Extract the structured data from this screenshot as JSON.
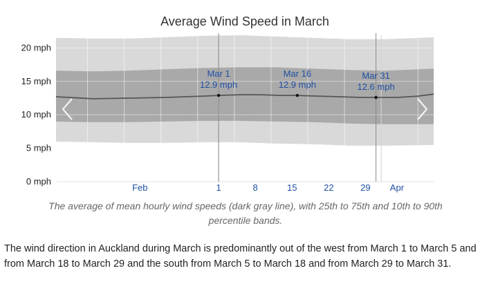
{
  "chart_data": {
    "type": "area",
    "title": "Average Wind Speed in March",
    "xlabel": "",
    "ylabel": "",
    "ylim": [
      0,
      22
    ],
    "y_ticks": [
      {
        "value": 0,
        "label": "0 mph"
      },
      {
        "value": 5,
        "label": "5 mph"
      },
      {
        "value": 10,
        "label": "10 mph"
      },
      {
        "value": 15,
        "label": "15 mph"
      },
      {
        "value": 20,
        "label": "20 mph"
      }
    ],
    "x_range": [
      "2024-01-30",
      "2024-04-11"
    ],
    "x_ticks": [
      {
        "date": "2024-02-15",
        "label": "Feb",
        "type": "month"
      },
      {
        "date": "2024-03-01",
        "label": "1",
        "type": "day"
      },
      {
        "date": "2024-03-08",
        "label": "8",
        "type": "day"
      },
      {
        "date": "2024-03-15",
        "label": "15",
        "type": "day"
      },
      {
        "date": "2024-03-22",
        "label": "22",
        "type": "day"
      },
      {
        "date": "2024-03-29",
        "label": "29",
        "type": "day"
      },
      {
        "date": "2024-04-04",
        "label": "Apr",
        "type": "month"
      }
    ],
    "vertical_grid_dates": [
      "2024-02-05",
      "2024-02-12",
      "2024-02-19",
      "2024-02-26",
      "2024-03-04",
      "2024-03-11",
      "2024-03-18",
      "2024-03-25",
      "2024-04-01",
      "2024-04-08"
    ],
    "month_boundaries": [
      "2024-03-01",
      "2024-04-01"
    ],
    "series": [
      {
        "role": "mean",
        "x": [
          "2024-01-30",
          "2024-02-06",
          "2024-02-13",
          "2024-02-20",
          "2024-02-27",
          "2024-03-01",
          "2024-03-05",
          "2024-03-09",
          "2024-03-13",
          "2024-03-16",
          "2024-03-20",
          "2024-03-24",
          "2024-03-28",
          "2024-03-31",
          "2024-04-04",
          "2024-04-08",
          "2024-04-11"
        ],
        "y": [
          12.7,
          12.4,
          12.5,
          12.6,
          12.8,
          12.9,
          13.0,
          13.0,
          12.9,
          12.9,
          12.8,
          12.7,
          12.6,
          12.6,
          12.6,
          12.8,
          13.1
        ]
      },
      {
        "role": "p25_p75",
        "x": [
          "2024-01-30",
          "2024-02-06",
          "2024-02-13",
          "2024-02-20",
          "2024-02-27",
          "2024-03-05",
          "2024-03-12",
          "2024-03-19",
          "2024-03-26",
          "2024-04-02",
          "2024-04-11"
        ],
        "low": [
          9.0,
          8.9,
          8.9,
          9.0,
          9.1,
          9.1,
          9.0,
          8.9,
          8.7,
          8.6,
          8.6
        ],
        "high": [
          16.6,
          16.5,
          16.6,
          16.8,
          17.0,
          17.1,
          17.1,
          16.9,
          16.7,
          16.6,
          16.9
        ]
      },
      {
        "role": "p10_p90",
        "x": [
          "2024-01-30",
          "2024-02-06",
          "2024-02-13",
          "2024-02-20",
          "2024-02-27",
          "2024-03-05",
          "2024-03-12",
          "2024-03-19",
          "2024-03-26",
          "2024-04-02",
          "2024-04-11"
        ],
        "low": [
          6.0,
          5.9,
          5.8,
          5.8,
          5.9,
          5.9,
          5.7,
          5.6,
          5.4,
          5.4,
          5.5
        ],
        "high": [
          21.5,
          21.4,
          21.4,
          21.6,
          21.8,
          21.9,
          21.7,
          21.5,
          21.3,
          21.3,
          21.6
        ]
      }
    ],
    "annotations": [
      {
        "date": "2024-03-01",
        "value": 12.9,
        "label_date": "Mar 1",
        "label_value": "12.9 mph",
        "marker": "vertical-line"
      },
      {
        "date": "2024-03-16",
        "value": 12.9,
        "label_date": "Mar 16",
        "label_value": "12.9 mph",
        "marker": "point"
      },
      {
        "date": "2024-03-31",
        "value": 12.6,
        "label_date": "Mar 31",
        "label_value": "12.6 mph",
        "marker": "vertical-line"
      }
    ],
    "colors": {
      "mean_line": "#555555",
      "band_inner": "#a9a9a9",
      "band_outer": "#d9d9d9",
      "annotation_text": "#1f4fa3",
      "tick_label": "#1f4fa3"
    },
    "nav": {
      "prev": "chevron-left-icon",
      "next": "chevron-right-icon"
    }
  },
  "caption": "The average of mean hourly wind speeds (dark gray line), with 25th to 75th and 10th to 90th percentile bands.",
  "description": {
    "t1": "The wind direction in Auckland during March is predominantly out of the ",
    "k1": "west",
    "t2": " from ",
    "d1": "March 1",
    "t3": " to ",
    "d2": "March 5",
    "t4": " and from ",
    "d3": "March 18",
    "t5": " to ",
    "d4": "March 29",
    "t6": " and the ",
    "k2": "south",
    "t7": " from ",
    "d5": "March 5",
    "t8": " to ",
    "d6": "March 18",
    "t9": " and from ",
    "d7": "March 29",
    "t10": " to ",
    "d8": "March 31",
    "t11": "."
  }
}
